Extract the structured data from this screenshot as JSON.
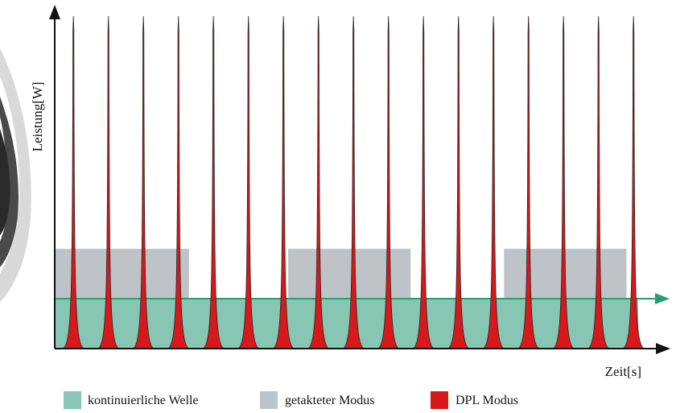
{
  "chart_data": {
    "type": "area",
    "xlabel": "Zeit[s]",
    "ylabel": "Leistung[W]",
    "xlim": [
      0,
      100
    ],
    "ylim": [
      0,
      100
    ],
    "grid": false,
    "legend_position": "bottom",
    "series": [
      {
        "name": "kontinuierliche Welle",
        "kind": "constant",
        "color": "#86c6b3",
        "level": 15,
        "x_start": 0,
        "x_end": 100
      },
      {
        "name": "getakteter Modus",
        "kind": "pulses",
        "color": "#bec3c7",
        "level": 30,
        "intervals": [
          [
            0,
            23
          ],
          [
            40,
            61
          ],
          [
            77,
            98
          ]
        ]
      },
      {
        "name": "DPL Modus",
        "kind": "spikes",
        "color": "#d7191b",
        "peak": 100,
        "base_width": 3.5,
        "positions": [
          3.2,
          9.2,
          15.2,
          21.2,
          27.2,
          33.2,
          39.2,
          45.2,
          51.2,
          57.2,
          63.2,
          69.2,
          75.2,
          81.2,
          87.2,
          93.2,
          99.2
        ]
      }
    ],
    "x_axis_color": "#111111",
    "cw_arrow_color": "#2a9d72",
    "axis_color": "#111111"
  }
}
